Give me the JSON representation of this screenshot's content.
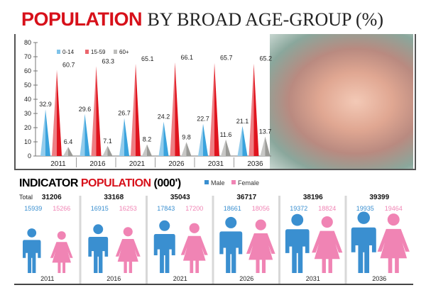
{
  "title": {
    "part1": "POPULATION",
    "part2": "BY BROAD AGE-GROUP (%)"
  },
  "chart_data": [
    {
      "type": "bar",
      "title": "POPULATION BY BROAD AGE-GROUP (%)",
      "categories": [
        "2011",
        "2016",
        "2021",
        "2026",
        "2031",
        "2036"
      ],
      "ylim": [
        0,
        80
      ],
      "yticks": [
        0,
        10,
        20,
        30,
        40,
        50,
        60,
        70,
        80
      ],
      "legend_position": "top-left",
      "series": [
        {
          "name": "0-14",
          "color": "#3aa3dd",
          "values": [
            32.9,
            29.6,
            26.7,
            24.2,
            22.7,
            21.1
          ]
        },
        {
          "name": "15-59",
          "color": "#e0141e",
          "values": [
            60.7,
            63.3,
            65.1,
            66.1,
            65.7,
            65.2
          ]
        },
        {
          "name": "60+",
          "color": "#9a9a96",
          "values": [
            6.4,
            7.1,
            8.2,
            9.8,
            11.6,
            13.7
          ]
        }
      ]
    },
    {
      "type": "table",
      "title": "INDICATOR POPULATION (000')",
      "total_label": "Total",
      "legend": [
        {
          "name": "Male",
          "color": "#3a8fd0"
        },
        {
          "name": "Female",
          "color": "#f084b4"
        }
      ],
      "categories": [
        "2011",
        "2016",
        "2021",
        "2026",
        "2031",
        "2036"
      ],
      "total": [
        31206,
        33168,
        35043,
        36717,
        38196,
        39399
      ],
      "male": [
        15939,
        16915,
        17843,
        18661,
        19372,
        19935
      ],
      "female": [
        15266,
        16253,
        17200,
        18056,
        18824,
        19464
      ]
    }
  ]
}
